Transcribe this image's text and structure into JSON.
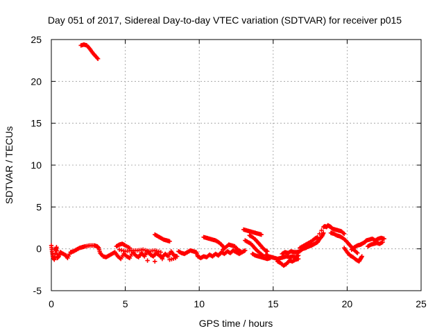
{
  "chart_data": {
    "type": "scatter",
    "title": "Day 051 of 2017, Sidereal Day-to-day VTEC variation (SDTVAR) for receiver p015",
    "xlabel": "GPS time / hours",
    "ylabel": "SDTVAR / TECUs",
    "xlim": [
      0,
      25
    ],
    "ylim": [
      -5,
      25
    ],
    "xticks": [
      0,
      5,
      10,
      15,
      20,
      25
    ],
    "yticks": [
      -5,
      0,
      5,
      10,
      15,
      20,
      25
    ],
    "grid": true,
    "legend": "none",
    "marker": "+",
    "color": "#ff0000",
    "series": [
      {
        "name": "p015",
        "points": [
          [
            2.0,
            24.3
          ],
          [
            2.2,
            24.4
          ],
          [
            2.4,
            24.3
          ],
          [
            2.6,
            23.9
          ],
          [
            2.8,
            23.4
          ],
          [
            3.0,
            23.0
          ],
          [
            3.15,
            22.7
          ],
          [
            0.0,
            0.4
          ],
          [
            0.05,
            -0.3
          ],
          [
            0.1,
            -0.9
          ],
          [
            0.2,
            -1.3
          ],
          [
            0.3,
            -0.2
          ],
          [
            0.35,
            0.2
          ],
          [
            0.4,
            -1.1
          ],
          [
            0.5,
            -0.9
          ],
          [
            0.6,
            -0.4
          ],
          [
            0.8,
            -0.6
          ],
          [
            1.0,
            -0.8
          ],
          [
            1.1,
            -1.1
          ],
          [
            1.3,
            -0.4
          ],
          [
            1.5,
            -0.3
          ],
          [
            1.7,
            -0.1
          ],
          [
            1.9,
            0.1
          ],
          [
            2.1,
            0.2
          ],
          [
            2.3,
            0.3
          ],
          [
            2.6,
            0.4
          ],
          [
            2.9,
            0.4
          ],
          [
            3.1,
            0.3
          ],
          [
            3.2,
            0.1
          ],
          [
            3.3,
            -0.5
          ],
          [
            3.5,
            -0.9
          ],
          [
            3.7,
            -1.0
          ],
          [
            3.9,
            -0.8
          ],
          [
            4.1,
            -0.6
          ],
          [
            4.3,
            -0.4
          ],
          [
            4.5,
            -0.9
          ],
          [
            4.7,
            -1.2
          ],
          [
            4.9,
            -0.6
          ],
          [
            5.1,
            -0.9
          ],
          [
            5.3,
            -1.1
          ],
          [
            5.5,
            -0.4
          ],
          [
            5.7,
            -0.8
          ],
          [
            5.9,
            -1.0
          ],
          [
            6.1,
            -0.5
          ],
          [
            6.3,
            -0.9
          ],
          [
            6.5,
            -0.3
          ],
          [
            6.7,
            -0.7
          ],
          [
            6.9,
            -0.9
          ],
          [
            7.1,
            -0.5
          ],
          [
            7.3,
            -0.8
          ],
          [
            7.5,
            -1.0
          ],
          [
            7.7,
            -0.6
          ],
          [
            7.9,
            -0.9
          ],
          [
            8.1,
            -0.3
          ],
          [
            8.3,
            -0.8
          ],
          [
            8.5,
            -0.9
          ],
          [
            4.6,
            -0.1
          ],
          [
            5.0,
            -0.3
          ],
          [
            5.4,
            -0.2
          ],
          [
            5.8,
            -0.2
          ],
          [
            6.2,
            -0.1
          ],
          [
            6.6,
            -0.3
          ],
          [
            7.0,
            -0.2
          ],
          [
            7.4,
            -0.4
          ],
          [
            8.0,
            -0.5
          ],
          [
            6.5,
            -1.4
          ],
          [
            7.0,
            -1.5
          ],
          [
            7.5,
            -1.2
          ],
          [
            8.0,
            -1.3
          ],
          [
            8.4,
            -1.1
          ],
          [
            4.4,
            0.3
          ],
          [
            4.6,
            0.5
          ],
          [
            4.8,
            0.6
          ],
          [
            5.0,
            0.4
          ],
          [
            5.3,
            0.1
          ],
          [
            7.0,
            1.7
          ],
          [
            7.2,
            1.5
          ],
          [
            7.4,
            1.3
          ],
          [
            7.6,
            1.1
          ],
          [
            7.8,
            1.0
          ],
          [
            8.0,
            0.9
          ],
          [
            8.6,
            -0.3
          ],
          [
            8.8,
            -0.5
          ],
          [
            9.0,
            -0.6
          ],
          [
            9.2,
            -0.4
          ],
          [
            9.4,
            -0.2
          ],
          [
            9.6,
            -0.3
          ],
          [
            9.8,
            -0.4
          ],
          [
            9.9,
            -0.9
          ],
          [
            10.1,
            -1.1
          ],
          [
            10.3,
            -0.9
          ],
          [
            10.5,
            -1.0
          ],
          [
            10.7,
            -0.7
          ],
          [
            10.9,
            -0.9
          ],
          [
            11.1,
            -0.6
          ],
          [
            11.3,
            -0.8
          ],
          [
            11.5,
            -0.4
          ],
          [
            11.7,
            -0.6
          ],
          [
            11.9,
            -0.3
          ],
          [
            12.1,
            -0.5
          ],
          [
            12.3,
            -0.2
          ],
          [
            12.5,
            -0.4
          ],
          [
            12.7,
            -0.6
          ],
          [
            12.9,
            -0.4
          ],
          [
            13.1,
            -0.2
          ],
          [
            10.3,
            1.4
          ],
          [
            10.5,
            1.3
          ],
          [
            10.7,
            1.2
          ],
          [
            10.9,
            1.1
          ],
          [
            11.1,
            1.0
          ],
          [
            11.3,
            0.8
          ],
          [
            11.5,
            0.5
          ],
          [
            11.7,
            0.1
          ],
          [
            11.6,
            -0.1
          ],
          [
            11.8,
            0.2
          ],
          [
            12.0,
            0.5
          ],
          [
            12.2,
            0.4
          ],
          [
            12.4,
            0.3
          ],
          [
            12.6,
            -0.1
          ],
          [
            12.8,
            -0.3
          ],
          [
            13.0,
            2.3
          ],
          [
            13.2,
            2.2
          ],
          [
            13.4,
            2.1
          ],
          [
            13.6,
            2.0
          ],
          [
            13.8,
            1.9
          ],
          [
            14.0,
            1.8
          ],
          [
            14.2,
            1.7
          ],
          [
            13.1,
            1.0
          ],
          [
            13.3,
            0.8
          ],
          [
            13.5,
            0.6
          ],
          [
            13.7,
            0.2
          ],
          [
            13.9,
            -0.2
          ],
          [
            14.1,
            -0.5
          ],
          [
            14.3,
            -0.8
          ],
          [
            13.4,
            1.6
          ],
          [
            13.6,
            1.4
          ],
          [
            13.8,
            1.1
          ],
          [
            14.0,
            0.7
          ],
          [
            14.2,
            0.3
          ],
          [
            14.4,
            -0.1
          ],
          [
            14.6,
            -0.3
          ],
          [
            13.6,
            -0.6
          ],
          [
            13.8,
            -0.8
          ],
          [
            14.0,
            -0.9
          ],
          [
            14.2,
            -1.0
          ],
          [
            14.4,
            -1.1
          ],
          [
            14.6,
            -1.2
          ],
          [
            14.8,
            -1.1
          ],
          [
            14.5,
            -0.7
          ],
          [
            14.7,
            -0.9
          ],
          [
            14.9,
            -1.0
          ],
          [
            15.1,
            -1.1
          ],
          [
            15.3,
            -1.2
          ],
          [
            15.5,
            -1.1
          ],
          [
            15.7,
            -1.0
          ],
          [
            15.9,
            -0.9
          ],
          [
            16.1,
            -1.0
          ],
          [
            16.3,
            -0.9
          ],
          [
            16.5,
            -1.0
          ],
          [
            16.7,
            -0.8
          ],
          [
            15.3,
            -1.5
          ],
          [
            15.5,
            -1.7
          ],
          [
            15.7,
            -2.0
          ],
          [
            15.9,
            -1.8
          ],
          [
            16.1,
            -1.4
          ],
          [
            16.3,
            -1.5
          ],
          [
            16.5,
            -1.3
          ],
          [
            16.7,
            -1.2
          ],
          [
            15.6,
            -0.6
          ],
          [
            15.8,
            -0.4
          ],
          [
            16.0,
            -0.5
          ],
          [
            16.2,
            -0.3
          ],
          [
            16.4,
            -0.4
          ],
          [
            16.6,
            -0.4
          ],
          [
            16.8,
            -0.3
          ],
          [
            17.0,
            0.0
          ],
          [
            17.2,
            0.1
          ],
          [
            17.4,
            0.3
          ],
          [
            17.6,
            0.4
          ],
          [
            17.8,
            0.6
          ],
          [
            18.0,
            0.8
          ],
          [
            18.1,
            1.1
          ],
          [
            18.3,
            1.5
          ],
          [
            18.4,
            1.9
          ],
          [
            16.8,
            0.1
          ],
          [
            17.0,
            0.3
          ],
          [
            17.2,
            0.5
          ],
          [
            17.4,
            0.7
          ],
          [
            17.6,
            0.9
          ],
          [
            17.8,
            1.2
          ],
          [
            18.0,
            1.4
          ],
          [
            18.4,
            2.6
          ],
          [
            18.5,
            2.7
          ],
          [
            18.6,
            2.6
          ],
          [
            18.7,
            2.8
          ],
          [
            18.8,
            2.7
          ],
          [
            18.9,
            2.6
          ],
          [
            19.0,
            2.4
          ],
          [
            19.2,
            2.3
          ],
          [
            19.4,
            2.2
          ],
          [
            19.6,
            2.1
          ],
          [
            19.8,
            1.8
          ],
          [
            18.9,
            1.9
          ],
          [
            19.1,
            1.8
          ],
          [
            19.3,
            1.6
          ],
          [
            19.5,
            1.5
          ],
          [
            19.7,
            1.3
          ],
          [
            19.9,
            1.0
          ],
          [
            20.1,
            0.6
          ],
          [
            20.3,
            0.2
          ],
          [
            20.5,
            -0.2
          ],
          [
            20.7,
            -0.5
          ],
          [
            19.8,
            0.1
          ],
          [
            20.0,
            -0.4
          ],
          [
            20.2,
            -0.8
          ],
          [
            20.4,
            -1.0
          ],
          [
            20.6,
            -1.3
          ],
          [
            20.8,
            -1.5
          ],
          [
            20.9,
            -1.2
          ],
          [
            21.0,
            -0.9
          ],
          [
            20.3,
            -0.1
          ],
          [
            20.5,
            0.2
          ],
          [
            20.7,
            0.4
          ],
          [
            20.9,
            0.5
          ],
          [
            21.0,
            0.6
          ],
          [
            21.2,
            0.8
          ],
          [
            21.3,
            1.0
          ],
          [
            21.5,
            1.1
          ],
          [
            21.7,
            1.2
          ],
          [
            21.9,
            1.0
          ],
          [
            22.1,
            1.2
          ],
          [
            22.3,
            1.3
          ],
          [
            22.5,
            1.2
          ],
          [
            21.4,
            0.3
          ],
          [
            21.6,
            0.5
          ],
          [
            21.8,
            0.6
          ],
          [
            22.0,
            0.7
          ],
          [
            22.2,
            0.6
          ],
          [
            22.4,
            0.8
          ]
        ]
      }
    ]
  }
}
